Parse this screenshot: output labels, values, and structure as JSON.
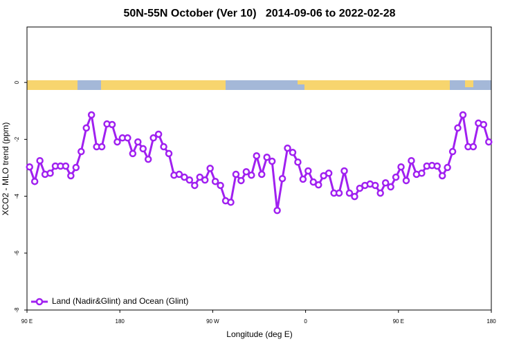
{
  "chart_data": {
    "type": "line",
    "title": "50N-55N October (Ver 10)   2014-09-06 to 2022-02-28",
    "x_label": "Longitude (deg E)",
    "y_label": "XCO2 - MLO trend (ppm)",
    "xlim": [
      90,
      540
    ],
    "xticks": [
      {
        "value": 90,
        "label": "90 E"
      },
      180,
      {
        "value": 270,
        "label": "90 W"
      },
      {
        "value": 360,
        "label": "0"
      },
      {
        "value": 450,
        "label": "90 E"
      },
      {
        "value": 540,
        "label": "180"
      }
    ],
    "ylim": [
      -8,
      1.95
    ],
    "yticks": [
      0,
      -2,
      -4,
      -6,
      -8
    ],
    "legend": "bottom-left",
    "x": [
      92.5,
      97.5,
      102.5,
      107.5,
      112.5,
      117.5,
      122.5,
      127.5,
      132.5,
      137.5,
      142.5,
      147.5,
      152.5,
      157.5,
      162.5,
      167.5,
      172.5,
      177.5,
      182.5,
      187.5,
      192.5,
      197.5,
      202.5,
      207.5,
      212.5,
      217.5,
      222.5,
      227.5,
      232.5,
      237.5,
      242.5,
      247.5,
      252.5,
      257.5,
      262.5,
      267.5,
      272.5,
      277.5,
      282.5,
      287.5,
      292.5,
      297.5,
      302.5,
      307.5,
      312.5,
      317.5,
      322.5,
      327.5,
      332.5,
      337.5,
      342.5,
      347.5,
      352.5,
      357.5,
      362.5,
      367.5,
      372.5,
      377.5,
      382.5,
      387.5,
      392.5,
      397.5,
      402.5,
      407.5,
      412.5,
      417.5,
      422.5,
      427.5,
      432.5,
      437.5,
      442.5,
      447.5,
      452.5,
      457.5,
      462.5,
      467.5,
      472.5,
      477.5,
      482.5,
      487.5,
      492.5,
      497.5,
      502.5,
      507.5,
      512.5,
      517.5,
      522.5,
      527.5,
      532.5,
      537.5
    ],
    "series": [
      {
        "name": "Land (Nadir&Glint) and Ocean (Glint)",
        "color": "#a020f0",
        "values": [
          -2.97,
          -3.48,
          -2.75,
          -3.23,
          -3.19,
          -2.94,
          -2.94,
          -2.94,
          -3.28,
          -2.99,
          -2.43,
          -1.6,
          -1.14,
          -2.26,
          -2.26,
          -1.46,
          -1.48,
          -2.09,
          -1.95,
          -1.95,
          -2.5,
          -2.09,
          -2.33,
          -2.7,
          -1.95,
          -1.82,
          -2.26,
          -2.5,
          -3.26,
          -3.23,
          -3.33,
          -3.43,
          -3.62,
          -3.33,
          -3.43,
          -3.02,
          -3.48,
          -3.62,
          -4.16,
          -4.21,
          -3.23,
          -3.45,
          -3.14,
          -3.26,
          -2.58,
          -3.23,
          -2.63,
          -2.77,
          -4.5,
          -3.38,
          -2.31,
          -2.46,
          -2.8,
          -3.4,
          -3.11,
          -3.5,
          -3.6,
          -3.28,
          -3.19,
          -3.89,
          -3.89,
          -3.11,
          -3.89,
          -4.01,
          -3.72,
          -3.62,
          -3.57,
          -3.62,
          -3.89,
          -3.53,
          -3.67,
          -3.33,
          -2.97,
          -3.45,
          -2.75,
          -3.23,
          -3.19,
          -2.94,
          -2.92,
          -2.94,
          -3.28,
          -2.99,
          -2.43,
          -1.6,
          -1.14,
          -2.26,
          -2.26,
          -1.43,
          -1.48,
          -2.09
        ]
      }
    ]
  }
}
